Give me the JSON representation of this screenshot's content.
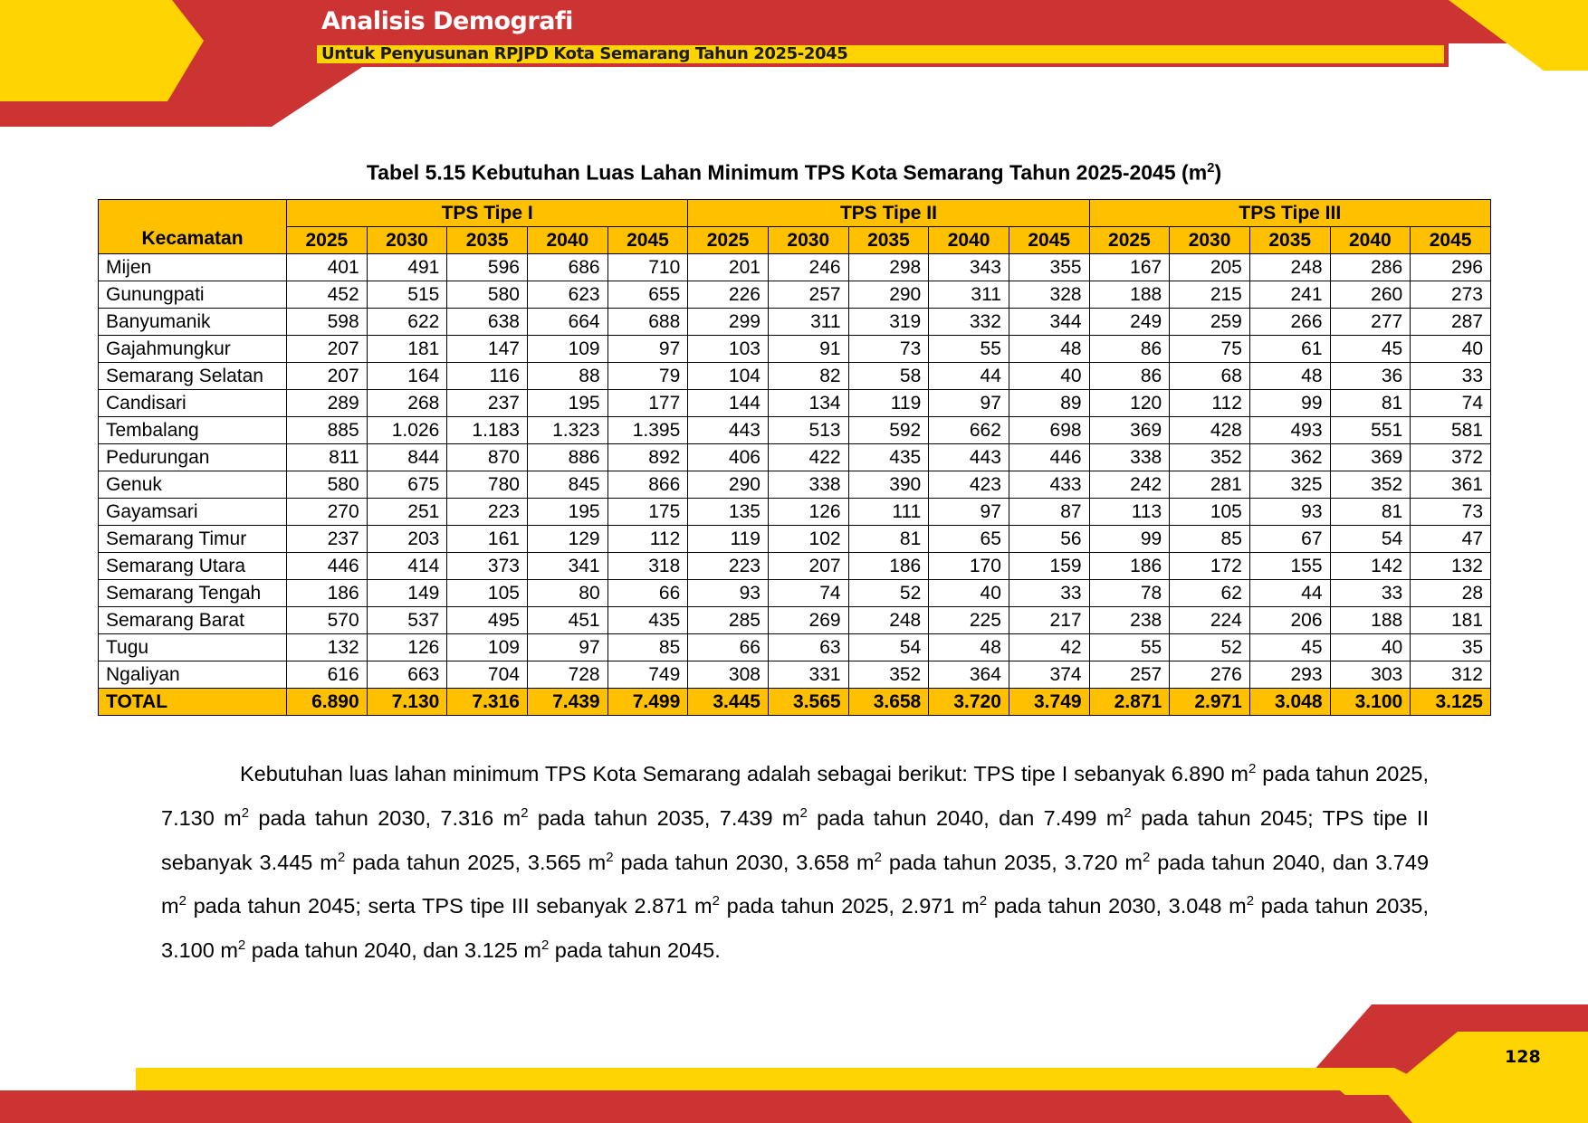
{
  "header": {
    "title": "Analisis Demografi",
    "subtitle": "Untuk Penyusunan RPJPD Kota Semarang Tahun 2025-2045",
    "colors": {
      "red": "#cc3333",
      "yellow": "#ffd400",
      "table_header": "#ffc000"
    }
  },
  "table": {
    "caption": "Tabel 5.15 Kebutuhan Luas Lahan Minimum TPS Kota Semarang Tahun 2025-2045 (m",
    "caption_sup": "2",
    "caption_end": ")",
    "column_header_kecamatan": "Kecamatan",
    "groups": [
      "TPS Tipe I",
      "TPS Tipe II",
      "TPS Tipe III"
    ],
    "years": [
      "2025",
      "2030",
      "2035",
      "2040",
      "2045"
    ],
    "rows": [
      {
        "name": "Mijen",
        "values": [
          "401",
          "491",
          "596",
          "686",
          "710",
          "201",
          "246",
          "298",
          "343",
          "355",
          "167",
          "205",
          "248",
          "286",
          "296"
        ]
      },
      {
        "name": "Gunungpati",
        "values": [
          "452",
          "515",
          "580",
          "623",
          "655",
          "226",
          "257",
          "290",
          "311",
          "328",
          "188",
          "215",
          "241",
          "260",
          "273"
        ]
      },
      {
        "name": "Banyumanik",
        "values": [
          "598",
          "622",
          "638",
          "664",
          "688",
          "299",
          "311",
          "319",
          "332",
          "344",
          "249",
          "259",
          "266",
          "277",
          "287"
        ]
      },
      {
        "name": "Gajahmungkur",
        "values": [
          "207",
          "181",
          "147",
          "109",
          "97",
          "103",
          "91",
          "73",
          "55",
          "48",
          "86",
          "75",
          "61",
          "45",
          "40"
        ]
      },
      {
        "name": "Semarang Selatan",
        "values": [
          "207",
          "164",
          "116",
          "88",
          "79",
          "104",
          "82",
          "58",
          "44",
          "40",
          "86",
          "68",
          "48",
          "36",
          "33"
        ]
      },
      {
        "name": "Candisari",
        "values": [
          "289",
          "268",
          "237",
          "195",
          "177",
          "144",
          "134",
          "119",
          "97",
          "89",
          "120",
          "112",
          "99",
          "81",
          "74"
        ]
      },
      {
        "name": "Tembalang",
        "values": [
          "885",
          "1.026",
          "1.183",
          "1.323",
          "1.395",
          "443",
          "513",
          "592",
          "662",
          "698",
          "369",
          "428",
          "493",
          "551",
          "581"
        ]
      },
      {
        "name": "Pedurungan",
        "values": [
          "811",
          "844",
          "870",
          "886",
          "892",
          "406",
          "422",
          "435",
          "443",
          "446",
          "338",
          "352",
          "362",
          "369",
          "372"
        ]
      },
      {
        "name": "Genuk",
        "values": [
          "580",
          "675",
          "780",
          "845",
          "866",
          "290",
          "338",
          "390",
          "423",
          "433",
          "242",
          "281",
          "325",
          "352",
          "361"
        ]
      },
      {
        "name": "Gayamsari",
        "values": [
          "270",
          "251",
          "223",
          "195",
          "175",
          "135",
          "126",
          "111",
          "97",
          "87",
          "113",
          "105",
          "93",
          "81",
          "73"
        ]
      },
      {
        "name": "Semarang Timur",
        "values": [
          "237",
          "203",
          "161",
          "129",
          "112",
          "119",
          "102",
          "81",
          "65",
          "56",
          "99",
          "85",
          "67",
          "54",
          "47"
        ]
      },
      {
        "name": "Semarang Utara",
        "values": [
          "446",
          "414",
          "373",
          "341",
          "318",
          "223",
          "207",
          "186",
          "170",
          "159",
          "186",
          "172",
          "155",
          "142",
          "132"
        ]
      },
      {
        "name": "Semarang Tengah",
        "values": [
          "186",
          "149",
          "105",
          "80",
          "66",
          "93",
          "74",
          "52",
          "40",
          "33",
          "78",
          "62",
          "44",
          "33",
          "28"
        ]
      },
      {
        "name": "Semarang Barat",
        "values": [
          "570",
          "537",
          "495",
          "451",
          "435",
          "285",
          "269",
          "248",
          "225",
          "217",
          "238",
          "224",
          "206",
          "188",
          "181"
        ]
      },
      {
        "name": "Tugu",
        "values": [
          "132",
          "126",
          "109",
          "97",
          "85",
          "66",
          "63",
          "54",
          "48",
          "42",
          "55",
          "52",
          "45",
          "40",
          "35"
        ]
      },
      {
        "name": "Ngaliyan",
        "values": [
          "616",
          "663",
          "704",
          "728",
          "749",
          "308",
          "331",
          "352",
          "364",
          "374",
          "257",
          "276",
          "293",
          "303",
          "312"
        ]
      }
    ],
    "total": {
      "name": "TOTAL",
      "values": [
        "6.890",
        "7.130",
        "7.316",
        "7.439",
        "7.499",
        "3.445",
        "3.565",
        "3.658",
        "3.720",
        "3.749",
        "2.871",
        "2.971",
        "3.048",
        "3.100",
        "3.125"
      ]
    }
  },
  "paragraph": {
    "segments": [
      {
        "t": "Kebutuhan luas lahan minimum TPS Kota Semarang adalah sebagai berikut: TPS tipe I sebanyak 6.890 m"
      },
      {
        "sup": "2"
      },
      {
        "t": " pada tahun 2025, 7.130 m"
      },
      {
        "sup": "2"
      },
      {
        "t": " pada tahun 2030, 7.316 m"
      },
      {
        "sup": "2"
      },
      {
        "t": " pada tahun 2035, 7.439 m"
      },
      {
        "sup": "2"
      },
      {
        "t": " pada tahun 2040, dan 7.499 m"
      },
      {
        "sup": "2"
      },
      {
        "t": " pada tahun 2045; TPS tipe II sebanyak 3.445 m"
      },
      {
        "sup": "2"
      },
      {
        "t": " pada tahun 2025, 3.565 m"
      },
      {
        "sup": "2"
      },
      {
        "t": " pada tahun 2030, 3.658 m"
      },
      {
        "sup": "2"
      },
      {
        "t": " pada tahun 2035, 3.720 m"
      },
      {
        "sup": "2"
      },
      {
        "t": " pada tahun 2040, dan 3.749 m"
      },
      {
        "sup": "2"
      },
      {
        "t": " pada tahun 2045; serta TPS tipe III sebanyak 2.871 m"
      },
      {
        "sup": "2"
      },
      {
        "t": " pada tahun 2025, 2.971 m"
      },
      {
        "sup": "2"
      },
      {
        "t": " pada tahun 2030, 3.048 m"
      },
      {
        "sup": "2"
      },
      {
        "t": " pada tahun 2035, 3.100 m"
      },
      {
        "sup": "2"
      },
      {
        "t": " pada tahun 2040, dan 3.125 m"
      },
      {
        "sup": "2"
      },
      {
        "t": " pada tahun 2045."
      }
    ]
  },
  "footer": {
    "page_number": "128"
  }
}
